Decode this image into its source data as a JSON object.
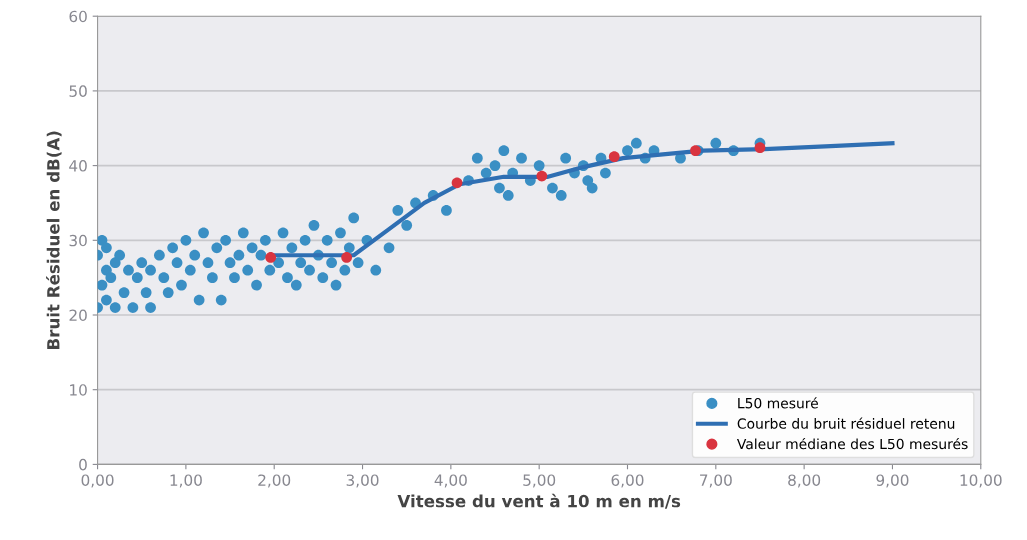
{
  "chart_data": {
    "type": "scatter",
    "xlabel": "Vitesse du vent à 10 m en m/s",
    "ylabel": "Bruit Résiduel en dB(A)",
    "xlim": [
      0,
      10
    ],
    "ylim": [
      0,
      60
    ],
    "xticks": [
      {
        "value": 0,
        "label": "0,00"
      },
      {
        "value": 1,
        "label": "1,00"
      },
      {
        "value": 2,
        "label": "2,00"
      },
      {
        "value": 3,
        "label": "3,00"
      },
      {
        "value": 4,
        "label": "4,00"
      },
      {
        "value": 5,
        "label": "5,00"
      },
      {
        "value": 6,
        "label": "6,00"
      },
      {
        "value": 7,
        "label": "7,00"
      },
      {
        "value": 8,
        "label": "8,00"
      },
      {
        "value": 9,
        "label": "9,00"
      },
      {
        "value": 10,
        "label": "10,00"
      }
    ],
    "yticks": [
      0,
      10,
      20,
      30,
      40,
      50,
      60
    ],
    "grid": "y",
    "legend": "bottom right",
    "series": [
      {
        "name": "L50 mesuré",
        "marker": "circle",
        "color": "#3a8fc4",
        "x": [
          0.0,
          0.0,
          0.05,
          0.05,
          0.1,
          0.1,
          0.1,
          0.15,
          0.2,
          0.2,
          0.25,
          0.3,
          0.35,
          0.4,
          0.45,
          0.5,
          0.55,
          0.6,
          0.6,
          0.7,
          0.75,
          0.8,
          0.85,
          0.9,
          0.95,
          1.0,
          1.05,
          1.1,
          1.15,
          1.2,
          1.25,
          1.3,
          1.35,
          1.4,
          1.45,
          1.5,
          1.55,
          1.6,
          1.65,
          1.7,
          1.75,
          1.8,
          1.85,
          1.9,
          1.95,
          2.05,
          2.1,
          2.15,
          2.2,
          2.25,
          2.3,
          2.35,
          2.4,
          2.45,
          2.5,
          2.55,
          2.6,
          2.65,
          2.7,
          2.75,
          2.8,
          2.85,
          2.9,
          2.95,
          3.05,
          3.15,
          3.3,
          3.4,
          3.5,
          3.6,
          3.8,
          3.95,
          4.2,
          4.3,
          4.4,
          4.5,
          4.55,
          4.6,
          4.65,
          4.7,
          4.8,
          4.9,
          5.0,
          5.15,
          5.25,
          5.3,
          5.4,
          5.5,
          5.55,
          5.6,
          5.7,
          5.75,
          6.0,
          6.1,
          6.2,
          6.3,
          6.6,
          6.8,
          7.0,
          7.2,
          7.5
        ],
        "values": [
          21,
          28,
          24,
          30,
          22,
          26,
          29,
          25,
          27,
          21,
          28,
          23,
          26,
          21,
          25,
          27,
          23,
          26,
          21,
          28,
          25,
          23,
          29,
          27,
          24,
          30,
          26,
          28,
          22,
          31,
          27,
          25,
          29,
          22,
          30,
          27,
          25,
          28,
          31,
          26,
          29,
          24,
          28,
          30,
          26,
          27,
          31,
          25,
          29,
          24,
          27,
          30,
          26,
          32,
          28,
          25,
          30,
          27,
          24,
          31,
          26,
          29,
          33,
          27,
          30,
          26,
          29,
          34,
          32,
          35,
          36,
          34,
          38,
          41,
          39,
          40,
          37,
          42,
          36,
          39,
          41,
          38,
          40,
          37,
          36,
          41,
          39,
          40,
          38,
          37,
          41,
          39,
          42,
          43,
          41,
          42,
          41,
          42,
          43,
          42,
          43
        ]
      },
      {
        "name": "Courbe du bruit résiduel retenu",
        "type": "line",
        "marker": "none",
        "line_style": "solid",
        "color": "#2f6fb3",
        "x": [
          2.0,
          2.9,
          3.3,
          3.7,
          4.1,
          4.6,
          5.1,
          5.5,
          5.95,
          6.4,
          6.85,
          7.55,
          8.3,
          9.0
        ],
        "values": [
          28,
          28,
          31.5,
          35,
          37.5,
          38.5,
          38.5,
          39.8,
          41,
          41.5,
          42,
          42.2,
          42.6,
          43
        ]
      },
      {
        "name": "Valeur médiane des L50 mesurés",
        "marker": "circle",
        "color": "#d9343f",
        "x": [
          1.96,
          2.82,
          4.07,
          5.03,
          5.85,
          6.77,
          7.5
        ],
        "values": [
          27.7,
          27.7,
          37.7,
          38.6,
          41.2,
          42.0,
          42.4
        ]
      }
    ]
  }
}
